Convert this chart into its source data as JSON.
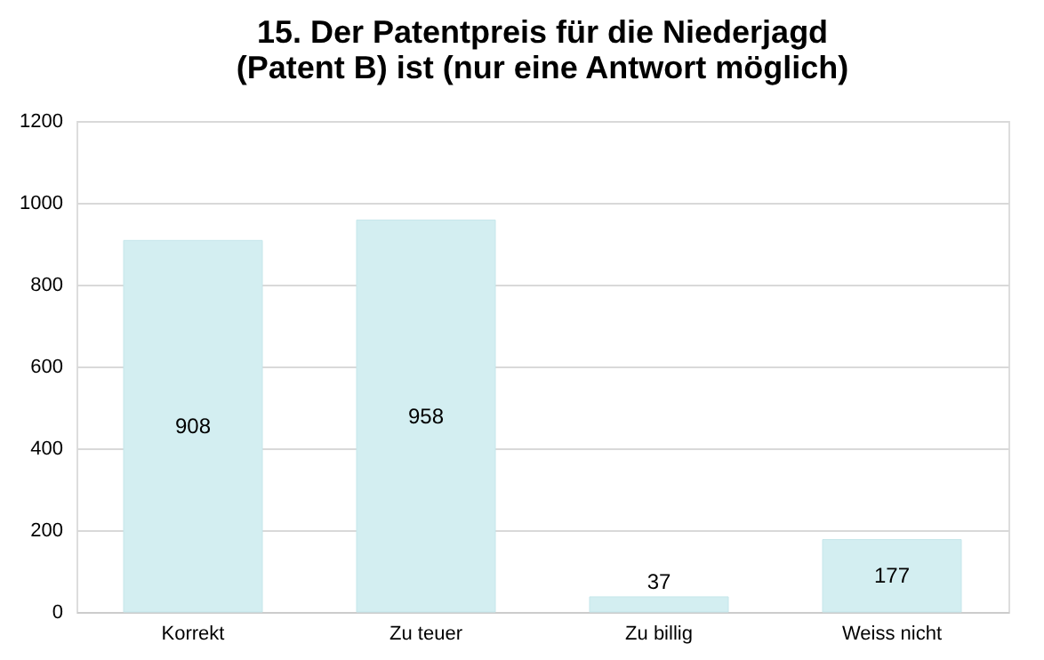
{
  "chart_data": {
    "type": "bar",
    "title": "15. Der Patentpreis für die Niederjagd (Patent B) ist (nur eine Antwort möglich)",
    "categories": [
      "Korrekt",
      "Zu teuer",
      "Zu billig",
      "Weiss nicht"
    ],
    "values": [
      908,
      958,
      37,
      177
    ],
    "color": "#d3eef1",
    "ylim": [
      0,
      1200
    ],
    "yticks": [
      0,
      200,
      400,
      600,
      800,
      1000,
      1200
    ],
    "grid": "y",
    "data_labels": true
  }
}
